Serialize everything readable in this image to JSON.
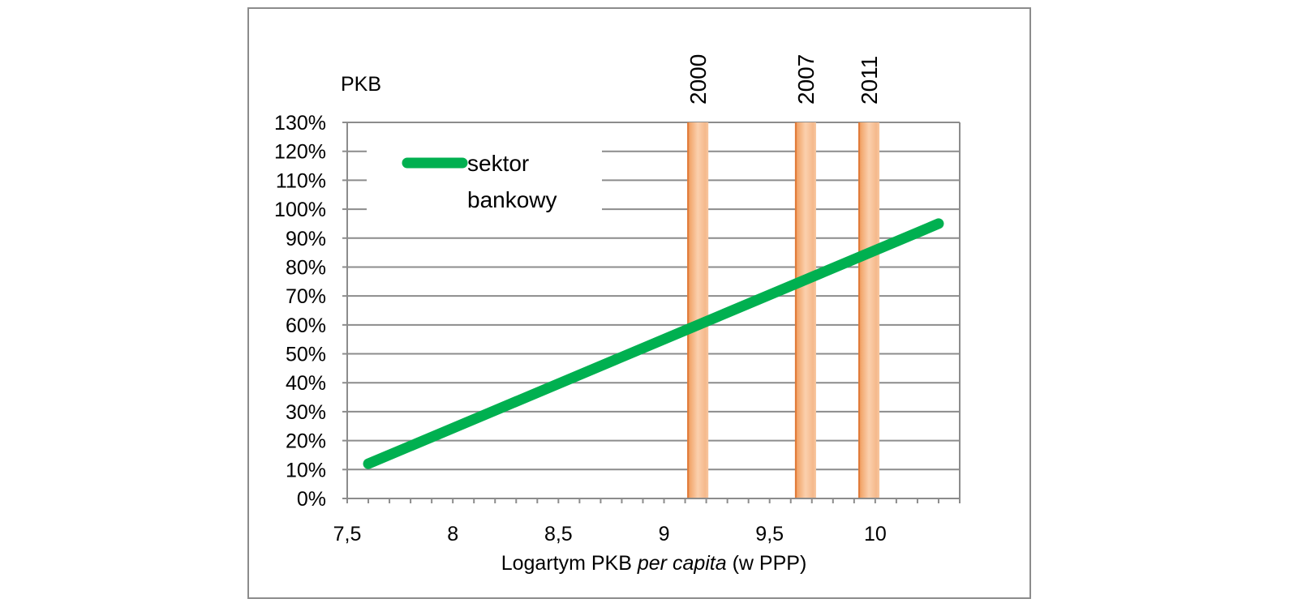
{
  "chart_data": {
    "type": "line",
    "ylabel": "PKB",
    "xlabel_prefix": "Logartym PKB ",
    "xlabel_italic": "per capita",
    "xlabel_suffix": " (w PPP)",
    "xlim": [
      7.5,
      10.4
    ],
    "ylim": [
      0,
      130
    ],
    "grid": true,
    "legend_position": "top-left",
    "x_ticks": [
      7.5,
      8,
      8.5,
      9,
      9.5,
      10
    ],
    "x_tick_labels": [
      "7,5",
      "8",
      "8,5",
      "9",
      "9,5",
      "10"
    ],
    "y_ticks": [
      0,
      10,
      20,
      30,
      40,
      50,
      60,
      70,
      80,
      90,
      100,
      110,
      120,
      130
    ],
    "y_tick_labels": [
      "0%",
      "10%",
      "20%",
      "30%",
      "40%",
      "50%",
      "60%",
      "70%",
      "80%",
      "90%",
      "100%",
      "110%",
      "120%",
      "130%"
    ],
    "series": [
      {
        "name": "sektor bankowy",
        "legend_lines": [
          "sektor",
          "bankowy"
        ],
        "color": "#00b050",
        "x": [
          7.6,
          10.3
        ],
        "y": [
          12,
          95
        ]
      }
    ],
    "vertical_bands": [
      {
        "label": "2000",
        "x_start": 9.11,
        "x_end": 9.21
      },
      {
        "label": "2007",
        "x_start": 9.62,
        "x_end": 9.72
      },
      {
        "label": "2011",
        "x_start": 9.92,
        "x_end": 10.02
      }
    ],
    "band_color": "#f4b183",
    "band_edge_color": "#e07b39"
  }
}
